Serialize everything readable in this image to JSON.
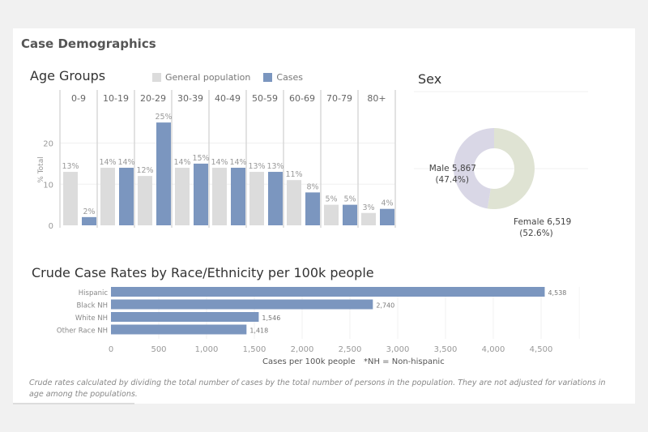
{
  "dashboard": {
    "title": "Case Demographics",
    "footnote": "Crude rates calculated by dividing the total number of cases by the total number of persons in the population.  They are not adjusted for variations in age among the populations."
  },
  "colors": {
    "general_population": "#dcdcdc",
    "cases": "#7b96bf",
    "male": "#d9d7e6",
    "female": "#dfe3d3",
    "race_bar": "#7b96bf"
  },
  "chart_data": [
    {
      "id": "age_groups",
      "type": "bar",
      "title": "Age Groups",
      "ylabel": "% Total",
      "xlabel": "",
      "ylim": [
        0,
        27
      ],
      "yticks": [
        0,
        10,
        20
      ],
      "categories": [
        "0-9",
        "10-19",
        "20-29",
        "30-39",
        "40-49",
        "50-59",
        "60-69",
        "70-79",
        "80+"
      ],
      "series": [
        {
          "name": "General population",
          "values": [
            13,
            14,
            12,
            14,
            14,
            13,
            11,
            5,
            3
          ],
          "labels": [
            "13%",
            "14%",
            "12%",
            "14%",
            "14%",
            "13%",
            "11%",
            "5%",
            "3%"
          ]
        },
        {
          "name": "Cases",
          "values": [
            2,
            14,
            25,
            15,
            14,
            13,
            8,
            5,
            4
          ],
          "labels": [
            "2%",
            "14%",
            "25%",
            "15%",
            "14%",
            "13%",
            "8%",
            "5%",
            "4%"
          ]
        }
      ],
      "legend": [
        "General population",
        "Cases"
      ],
      "legend_position": "top"
    },
    {
      "id": "sex",
      "type": "pie",
      "title": "Sex",
      "donut": true,
      "slices": [
        {
          "name": "Female",
          "value": 6519,
          "percent": 52.6,
          "label_line1": "Female 6,519",
          "label_line2": "(52.6%)"
        },
        {
          "name": "Male",
          "value": 5867,
          "percent": 47.4,
          "label_line1": "Male 5,867",
          "label_line2": "(47.4%)"
        }
      ]
    },
    {
      "id": "race_rates",
      "type": "bar",
      "orientation": "horizontal",
      "title": "Crude Case Rates by Race/Ethnicity per 100k people",
      "categories": [
        "Hispanic",
        "Black NH",
        "White NH",
        "Other Race NH"
      ],
      "values": [
        4538,
        2740,
        1546,
        1418
      ],
      "value_labels": [
        "4,538",
        "2,740",
        "1,546",
        "1,418"
      ],
      "xlabel": "Cases per 100k people",
      "note": "*NH = Non-hispanic",
      "xlim": [
        0,
        4900
      ],
      "xticks": [
        0,
        500,
        1000,
        1500,
        2000,
        2500,
        3000,
        3500,
        4000,
        4500
      ],
      "xtick_labels": [
        "0",
        "500",
        "1,000",
        "1,500",
        "2,000",
        "2,500",
        "3,000",
        "3,500",
        "4,000",
        "4,500"
      ]
    }
  ]
}
